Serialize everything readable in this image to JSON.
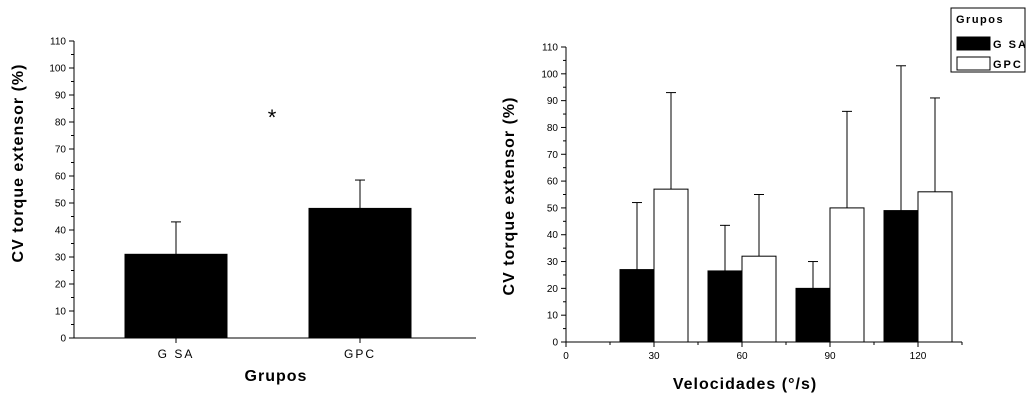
{
  "chart_data": [
    {
      "type": "bar",
      "categories": [
        "GSA",
        "GPC"
      ],
      "category_labels": [
        "G SA",
        "GPC"
      ],
      "series": [
        {
          "values": [
            31,
            48
          ],
          "errors": [
            12,
            10.5
          ],
          "color": "#000000"
        }
      ],
      "xlabel": "Grupos",
      "ylabel": "CV torque extensor (%)",
      "ylim": [
        0,
        110
      ],
      "yticks": [
        0,
        10,
        20,
        30,
        40,
        50,
        60,
        70,
        80,
        90,
        100,
        110
      ],
      "annotation": "*",
      "grid": false
    },
    {
      "type": "bar",
      "categories": [
        30,
        60,
        90,
        120
      ],
      "series": [
        {
          "name": "G SA",
          "values": [
            27,
            26.5,
            20,
            49
          ],
          "errors": [
            25,
            17,
            10,
            54
          ],
          "color": "#000000"
        },
        {
          "name": "GPC",
          "values": [
            57,
            32,
            50,
            56
          ],
          "errors": [
            36,
            23,
            36,
            35
          ],
          "color": "#ffffff"
        }
      ],
      "xlabel": "Velocidades (°/s)",
      "ylabel": "CV torque extensor (%)",
      "xlim": [
        0,
        135
      ],
      "xticks": [
        0,
        30,
        60,
        90,
        120
      ],
      "ylim": [
        0,
        110
      ],
      "yticks": [
        0,
        10,
        20,
        30,
        40,
        50,
        60,
        70,
        80,
        90,
        100,
        110
      ],
      "legend_title": "Grupos",
      "legend_placement": "top-right",
      "grid": false
    }
  ]
}
